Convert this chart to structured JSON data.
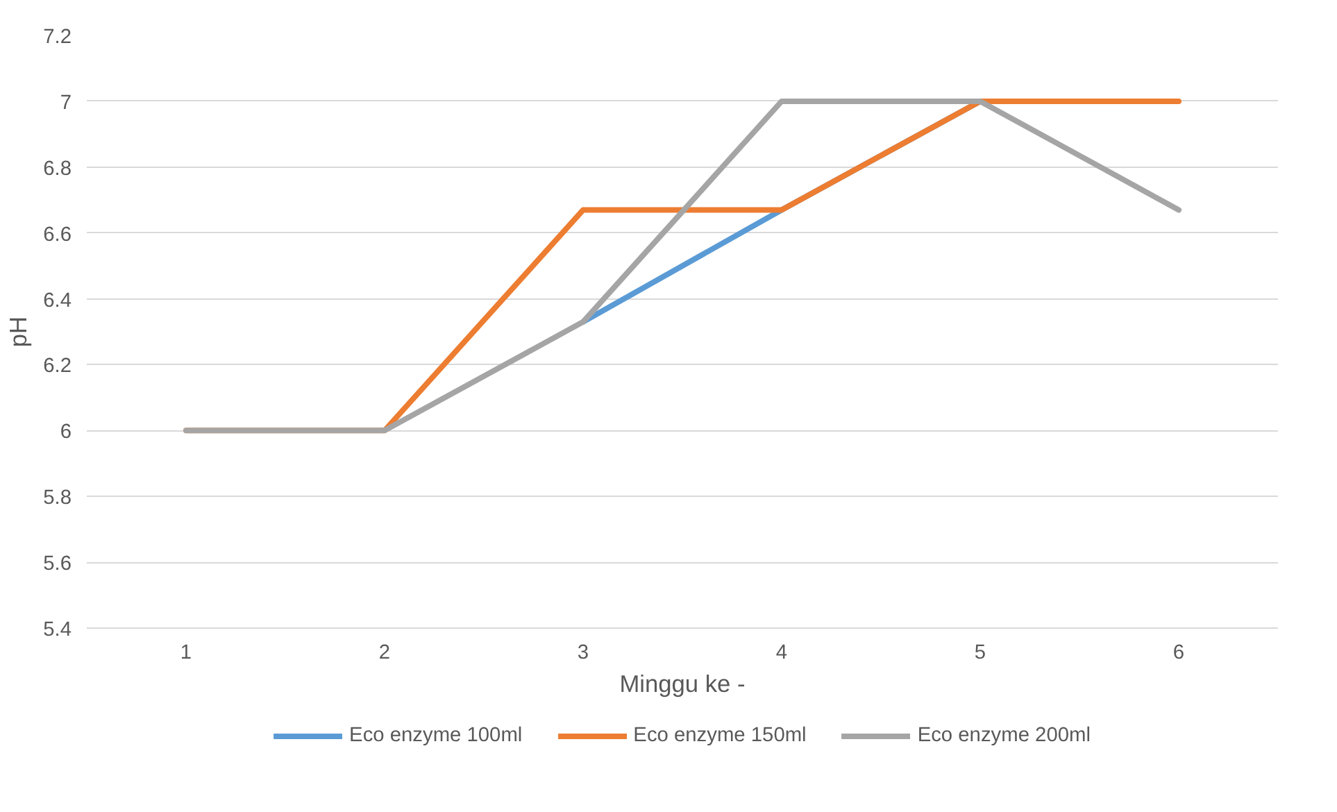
{
  "chart_data": {
    "type": "line",
    "xlabel": "Minggu ke -",
    "ylabel": "pH",
    "categories": [
      "1",
      "2",
      "3",
      "4",
      "5",
      "6"
    ],
    "series": [
      {
        "name": "Eco enzyme 100ml",
        "color": "#5b9bd5",
        "values": [
          null,
          null,
          6.33,
          6.67,
          7,
          null
        ]
      },
      {
        "name": "Eco enzyme 150ml",
        "color": "#ed7d31",
        "values": [
          6,
          6,
          6.67,
          6.67,
          7,
          7
        ]
      },
      {
        "name": "Eco enzyme 200ml",
        "color": "#a5a5a5",
        "values": [
          6,
          6,
          6.33,
          7,
          7,
          6.67
        ]
      }
    ],
    "ylim": [
      5.4,
      7.2
    ],
    "yticks": [
      5.4,
      5.6,
      5.8,
      6,
      6.2,
      6.4,
      6.6,
      6.8,
      7,
      7.2
    ],
    "grid": "y",
    "legend": "bottom",
    "marker": "none",
    "line_style": "solid"
  }
}
